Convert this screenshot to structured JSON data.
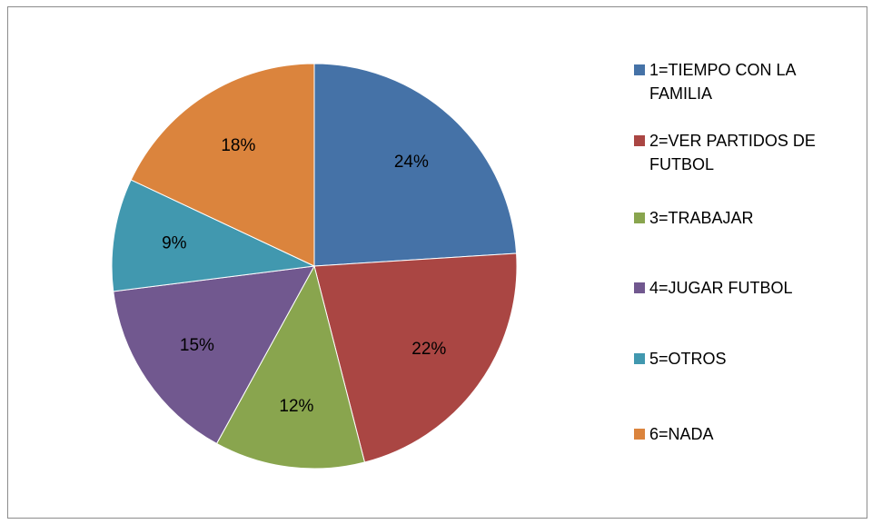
{
  "chart_data": {
    "type": "pie",
    "categories": [
      "1=TIEMPO CON LA FAMILIA",
      "2=VER PARTIDOS DE FUTBOL",
      "3=TRABAJAR",
      "4=JUGAR FUTBOL",
      "5=OTROS",
      "6=NADA"
    ],
    "values": [
      24,
      22,
      12,
      15,
      9,
      18
    ],
    "value_labels": [
      "24%",
      "22%",
      "12%",
      "15%",
      "9%",
      "18%"
    ],
    "colors": [
      "#4572a7",
      "#aa4643",
      "#89a54e",
      "#71588f",
      "#4198af",
      "#db843d"
    ],
    "legend": "right"
  }
}
